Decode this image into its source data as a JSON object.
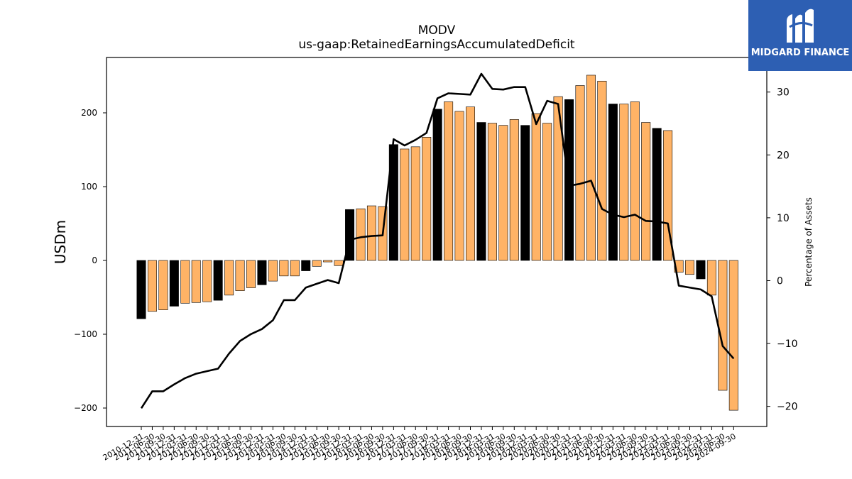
{
  "brand": {
    "name": "MIDGARD FINANCE",
    "bg_color": "#2d5fb3",
    "icon": "midgard-logo-icon"
  },
  "chart_data": {
    "type": "bar",
    "title": "MODV",
    "subtitle": "us-gaap:RetainedEarningsAccumulatedDeficit",
    "ylabel": "USDm",
    "y2label": "Percentage of Assets",
    "ylim": [
      -225,
      275
    ],
    "y2lim": [
      -23.2,
      35.5
    ],
    "yticks": [
      -200,
      -100,
      0,
      100,
      200
    ],
    "y2ticks": [
      -20,
      -10,
      0,
      10,
      20,
      30
    ],
    "colors": {
      "annual": "#000000",
      "quarterly": "#ffb366",
      "line": "#000000"
    },
    "categories": [
      "2010-12-31",
      "2011-06-30",
      "2011-09-30",
      "2011-12-31",
      "2012-03-31",
      "2012-06-30",
      "2012-09-30",
      "2012-12-31",
      "2013-03-31",
      "2013-06-30",
      "2013-09-30",
      "2013-12-31",
      "2014-03-31",
      "2014-06-30",
      "2014-09-30",
      "2014-12-31",
      "2015-03-31",
      "2015-06-30",
      "2015-09-30",
      "2015-12-31",
      "2016-03-31",
      "2016-06-30",
      "2016-09-30",
      "2016-12-31",
      "2017-03-31",
      "2017-06-30",
      "2017-09-30",
      "2017-12-31",
      "2018-03-31",
      "2018-06-30",
      "2018-09-30",
      "2018-12-31",
      "2019-03-31",
      "2019-06-30",
      "2019-09-30",
      "2019-12-31",
      "2020-03-31",
      "2020-06-30",
      "2020-09-30",
      "2020-12-31",
      "2021-03-31",
      "2021-06-30",
      "2021-09-30",
      "2021-12-31",
      "2022-03-31",
      "2022-06-30",
      "2022-09-30",
      "2022-12-31",
      "2023-03-31",
      "2023-06-30",
      "2023-09-30",
      "2023-12-31",
      "2024-03-31",
      "2024-06-30",
      "2024-09-30"
    ],
    "series": [
      {
        "kind": "bar",
        "values": [
          -79,
          -69,
          -67,
          -62,
          -58,
          -57,
          -56,
          -54,
          -47,
          -41,
          -37,
          -33,
          -28,
          -21,
          -21,
          -14,
          -8,
          -2,
          -7,
          69,
          70,
          74,
          73,
          157,
          151,
          154,
          167,
          205,
          215,
          202,
          208,
          187,
          186,
          183,
          191,
          183,
          199,
          186,
          222,
          218,
          237,
          251,
          243,
          212,
          212,
          215,
          187,
          179,
          176,
          -16,
          -19,
          -25,
          -47,
          -176,
          -203
        ],
        "annual_flags": [
          1,
          0,
          0,
          1,
          0,
          0,
          0,
          1,
          0,
          0,
          0,
          1,
          0,
          0,
          0,
          1,
          0,
          0,
          0,
          1,
          0,
          0,
          0,
          1,
          0,
          0,
          0,
          1,
          0,
          0,
          0,
          1,
          0,
          0,
          0,
          1,
          0,
          0,
          0,
          1,
          0,
          0,
          0,
          1,
          0,
          0,
          0,
          1,
          0,
          0,
          0,
          1,
          0,
          0,
          0
        ]
      },
      {
        "kind": "line",
        "axis": "right",
        "values": [
          -20.3,
          -17.6,
          -17.6,
          -16.5,
          -15.5,
          -14.8,
          -14.4,
          -14.0,
          -11.6,
          -9.6,
          -8.5,
          -7.7,
          -6.3,
          -3.1,
          -3.1,
          -1.1,
          -0.5,
          0.1,
          -0.4,
          6.5,
          6.9,
          7.1,
          7.2,
          22.5,
          21.5,
          22.4,
          23.5,
          29.0,
          29.8,
          29.7,
          29.6,
          32.9,
          30.5,
          30.4,
          30.8,
          30.8,
          24.9,
          28.6,
          28.1,
          15.1,
          15.4,
          15.9,
          11.4,
          10.5,
          10.1,
          10.5,
          9.5,
          9.4,
          9.1,
          -0.8,
          -1.1,
          -1.4,
          -2.5,
          -10.4,
          -12.4
        ]
      }
    ],
    "xtick_labels": [
      "2010-12-31",
      "2011-06-30",
      "2011-09-30",
      "2011-12-31",
      "2012-03-31",
      "2012-06-30",
      "2012-09-30",
      "2012-12-31",
      "2013-03-31",
      "2013-06-30",
      "2013-09-30",
      "2013-12-31",
      "2014-03-31",
      "2014-06-30",
      "2014-09-30",
      "2014-12-31",
      "2015-03-31",
      "2015-06-30",
      "2015-09-30",
      "2015-12-31",
      "2016-03-31",
      "2016-06-30",
      "2016-09-30",
      "2016-12-31",
      "2017-03-31",
      "2017-06-30",
      "2017-09-30",
      "2017-12-31",
      "2018-03-31",
      "2018-06-30",
      "2018-09-30",
      "2018-12-31",
      "2019-03-31",
      "2019-06-30",
      "2019-09-30",
      "2019-12-31",
      "2020-03-31",
      "2020-06-30",
      "2020-09-30",
      "2020-12-31",
      "2021-03-31",
      "2021-06-30",
      "2021-09-30",
      "2021-12-31",
      "2022-03-31",
      "2022-06-30",
      "2022-09-30",
      "2022-12-31",
      "2023-03-31",
      "2023-06-30",
      "2023-09-30",
      "2023-12-31",
      "2024-03-31",
      "2024-06-30",
      "2024-09-30"
    ],
    "grid": false,
    "legend": "none"
  }
}
